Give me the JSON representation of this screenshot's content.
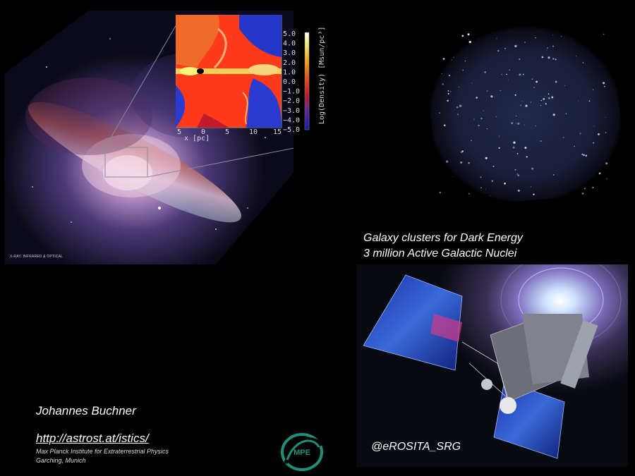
{
  "galaxy": {
    "caption": "X-RAY, INFRARED & OPTICAL"
  },
  "inset_plot": {
    "colorbar_label": "Log(Density) [Msun/pc³]",
    "colorbar_ticks": [
      "5.0",
      "4.0",
      "3.0",
      "2.0",
      "1.0",
      "0.0",
      "−1.0",
      "−2.0",
      "−3.0",
      "−4.0",
      "−5.0"
    ],
    "x_ticks": [
      "5",
      "0",
      "5",
      "10",
      "15"
    ],
    "x_label": "x [pc]"
  },
  "survey": {
    "line1": "Galaxy clusters for Dark Energy",
    "line2": "3 million Active Galactic Nuclei"
  },
  "satellite": {
    "handle": "@eROSITA_SRG"
  },
  "author": {
    "name": "Johannes Buchner",
    "url": "http://astrost.at/istics/",
    "affiliation_line1": "Max Planck Institute for Extraterrestrial Physics",
    "affiliation_line2": "Garching, Munich"
  },
  "logo": {
    "text": "MPE",
    "color": "#1f8f7a"
  }
}
